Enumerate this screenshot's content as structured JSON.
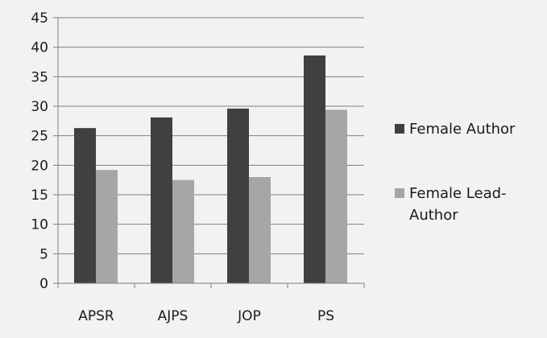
{
  "chart_data": {
    "type": "bar",
    "title": "",
    "xlabel": "",
    "ylabel": "",
    "categories": [
      "APSR",
      "AJPS",
      "JOP",
      "PS"
    ],
    "ylim": [
      0,
      45
    ],
    "yticks": [
      0,
      5,
      10,
      15,
      20,
      25,
      30,
      35,
      40,
      45
    ],
    "grid": true,
    "legend_position": "right",
    "series": [
      {
        "name": "Female Author",
        "name_lines": [
          "Female Author"
        ],
        "color": "#404040",
        "values": [
          26.3,
          28.1,
          29.6,
          38.6
        ]
      },
      {
        "name": "Female Lead-Author",
        "name_lines": [
          "Female Lead-",
          "Author"
        ],
        "color": "#a6a6a6",
        "values": [
          19.2,
          17.5,
          18.0,
          29.4
        ]
      }
    ]
  }
}
